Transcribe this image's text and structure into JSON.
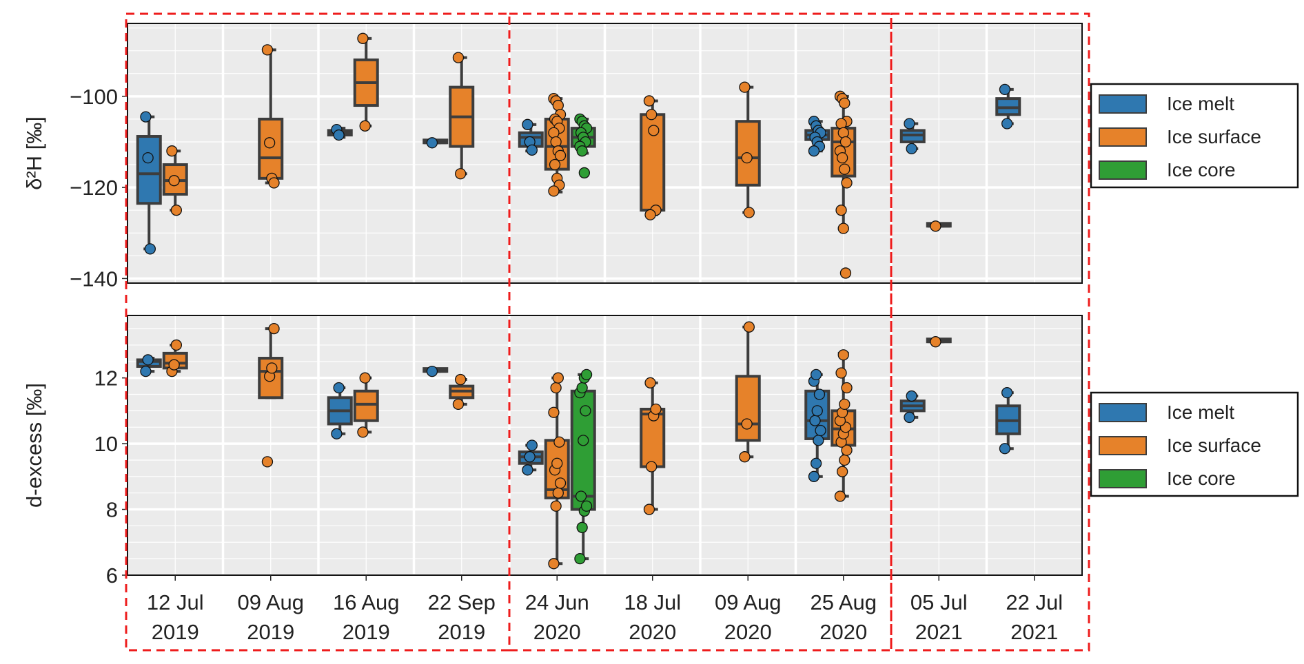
{
  "colors": {
    "Ice melt": "#2f78b0",
    "Ice surface": "#e6822a",
    "Ice core": "#2f9e35",
    "panel_bg": "#ebebeb",
    "grid": "#ffffff",
    "box_edge": "#3d3d3d",
    "group_frame": "#ee1c1c"
  },
  "chart_data": [
    {
      "type": "box",
      "ylabel": "δ²H [‰]",
      "ylim": [
        -141,
        -84
      ],
      "yticks": [
        -100,
        -120,
        -140
      ],
      "grid": true,
      "legend_position": "right",
      "legend": [
        "Ice melt",
        "Ice surface",
        "Ice core"
      ],
      "categories": [
        "12 Jul 2019",
        "09 Aug 2019",
        "16 Aug 2019",
        "22 Sep 2019",
        "24 Jun 2020",
        "18 Jul 2020",
        "09 Aug 2020",
        "25 Aug 2020",
        "05 Jul 2021",
        "22 Jul 2021"
      ],
      "category_lines": [
        [
          "12 Jul",
          "2019"
        ],
        [
          "09 Aug",
          "2019"
        ],
        [
          "16 Aug",
          "2019"
        ],
        [
          "22 Sep",
          "2019"
        ],
        [
          "24 Jun",
          "2020"
        ],
        [
          "18 Jul",
          "2020"
        ],
        [
          "09 Aug",
          "2020"
        ],
        [
          "25 Aug",
          "2020"
        ],
        [
          "05 Jul",
          "2021"
        ],
        [
          "22 Jul",
          "2021"
        ]
      ],
      "series_slots": [
        "Ice melt",
        "Ice surface",
        "Ice core"
      ],
      "boxes": [
        {
          "category": 0,
          "series": "Ice melt",
          "q1": -123.5,
          "median": -117.0,
          "q3": -108.8,
          "whislo": -133.5,
          "whishi": -104.5,
          "points": [
            -104.5,
            -113.5,
            -133.5
          ]
        },
        {
          "category": 0,
          "series": "Ice surface",
          "q1": -121.5,
          "median": -118.5,
          "q3": -115.0,
          "whislo": -125.0,
          "whishi": -112.0,
          "points": [
            -112.0,
            -118.5,
            -125.0
          ]
        },
        {
          "category": 1,
          "series": "Ice surface",
          "q1": -118.0,
          "median": -113.5,
          "q3": -105.0,
          "whislo": -119.0,
          "whishi": -89.8,
          "points": [
            -89.8,
            -110.2,
            -118.0,
            -119.0
          ]
        },
        {
          "category": 2,
          "series": "Ice melt",
          "q1": -108.5,
          "median": -108.0,
          "q3": -107.5,
          "whislo": -109.0,
          "whishi": -107.0,
          "points": [
            -107.3,
            -108.5
          ]
        },
        {
          "category": 2,
          "series": "Ice surface",
          "q1": -102.0,
          "median": -97.0,
          "q3": -92.0,
          "whislo": -106.5,
          "whishi": -87.3,
          "points": [
            -87.3,
            -106.5
          ]
        },
        {
          "category": 3,
          "series": "Ice melt",
          "q1": -110.2,
          "median": -110.2,
          "q3": -110.2,
          "whislo": -110.2,
          "whishi": -110.2,
          "points": [
            -110.2
          ]
        },
        {
          "category": 3,
          "series": "Ice surface",
          "q1": -111.0,
          "median": -104.5,
          "q3": -98.0,
          "whislo": -117.0,
          "whishi": -91.5,
          "points": [
            -91.5,
            -117.0
          ]
        },
        {
          "category": 4,
          "series": "Ice melt",
          "q1": -111.0,
          "median": -109.0,
          "q3": -108.0,
          "whislo": -112.0,
          "whishi": -106.2,
          "points": [
            -106.2,
            -110.0,
            -111.8
          ]
        },
        {
          "category": 4,
          "series": "Ice surface",
          "q1": -116.0,
          "median": -111.0,
          "q3": -105.0,
          "whislo": -121.0,
          "whishi": -100.5,
          "points": [
            -100.5,
            -101.0,
            -102.0,
            -104.0,
            -105.0,
            -105.5,
            -107.0,
            -108.0,
            -110.0,
            -112.0,
            -113.0,
            -115.0,
            -118.0,
            -119.5,
            -120.8
          ]
        },
        {
          "category": 4,
          "series": "Ice core",
          "q1": -111.0,
          "median": -109.0,
          "q3": -107.0,
          "whislo": -112.5,
          "whishi": -105.0,
          "points": [
            -105.0,
            -105.5,
            -106.5,
            -107.0,
            -108.0,
            -109.0,
            -110.0,
            -111.0,
            -112.0,
            -116.8
          ]
        },
        {
          "category": 5,
          "series": "Ice surface",
          "q1": -125.0,
          "median": -125.0,
          "q3": -104.0,
          "whislo": -126.0,
          "whishi": -101.0,
          "points": [
            -101.0,
            -104.0,
            -107.5,
            -125.0,
            -126.0
          ]
        },
        {
          "category": 6,
          "series": "Ice surface",
          "q1": -119.5,
          "median": -113.5,
          "q3": -105.5,
          "whislo": -125.5,
          "whishi": -98.0,
          "points": [
            -98.0,
            -113.5,
            -125.5
          ]
        },
        {
          "category": 7,
          "series": "Ice melt",
          "q1": -109.5,
          "median": -108.5,
          "q3": -107.5,
          "whislo": -112.0,
          "whishi": -105.5,
          "points": [
            -105.5,
            -106.5,
            -107.5,
            -108.0,
            -109.0,
            -110.0,
            -111.0,
            -112.0
          ]
        },
        {
          "category": 7,
          "series": "Ice surface",
          "q1": -117.5,
          "median": -110.0,
          "q3": -107.0,
          "whislo": -129.0,
          "whishi": -100.0,
          "points": [
            -100.0,
            -100.5,
            -101.5,
            -105.5,
            -106.0,
            -108.0,
            -110.0,
            -112.0,
            -113.5,
            -116.0,
            -119.0,
            -125.0,
            -129.0,
            -138.8
          ]
        },
        {
          "category": 8,
          "series": "Ice melt",
          "q1": -110.0,
          "median": -108.5,
          "q3": -107.5,
          "whislo": -111.5,
          "whishi": -106.0,
          "points": [
            -106.0,
            -111.5
          ]
        },
        {
          "category": 8,
          "series": "Ice surface",
          "q1": -128.5,
          "median": -128.5,
          "q3": -128.5,
          "whislo": -128.5,
          "whishi": -128.5,
          "points": [
            -128.5
          ]
        },
        {
          "category": 9,
          "series": "Ice melt",
          "q1": -104.0,
          "median": -102.5,
          "q3": -100.5,
          "whislo": -106.0,
          "whishi": -98.5,
          "points": [
            -98.5,
            -106.0
          ]
        }
      ]
    },
    {
      "type": "box",
      "ylabel": "d-excess [‰]",
      "ylim": [
        6,
        13.9
      ],
      "yticks": [
        12,
        10,
        8,
        6
      ],
      "grid": true,
      "legend_position": "right",
      "legend": [
        "Ice melt",
        "Ice surface",
        "Ice core"
      ],
      "categories": [
        "12 Jul 2019",
        "09 Aug 2019",
        "16 Aug 2019",
        "22 Sep 2019",
        "24 Jun 2020",
        "18 Jul 2020",
        "09 Aug 2020",
        "25 Aug 2020",
        "05 Jul 2021",
        "22 Jul 2021"
      ],
      "series_slots": [
        "Ice melt",
        "Ice surface",
        "Ice core"
      ],
      "boxes": [
        {
          "category": 0,
          "series": "Ice melt",
          "q1": 12.35,
          "median": 12.5,
          "q3": 12.55,
          "whislo": 12.2,
          "whishi": 12.6,
          "points": [
            12.2,
            12.55
          ]
        },
        {
          "category": 0,
          "series": "Ice surface",
          "q1": 12.3,
          "median": 12.45,
          "q3": 12.75,
          "whislo": 12.2,
          "whishi": 13.0,
          "points": [
            12.2,
            12.4,
            13.0
          ]
        },
        {
          "category": 1,
          "series": "Ice surface",
          "q1": 11.4,
          "median": 12.2,
          "q3": 12.6,
          "whislo": 11.4,
          "whishi": 13.5,
          "points": [
            9.45,
            12.05,
            12.3,
            13.5
          ]
        },
        {
          "category": 2,
          "series": "Ice melt",
          "q1": 10.6,
          "median": 11.0,
          "q3": 11.4,
          "whislo": 10.3,
          "whishi": 11.7,
          "points": [
            10.3,
            11.7
          ]
        },
        {
          "category": 2,
          "series": "Ice surface",
          "q1": 10.7,
          "median": 11.2,
          "q3": 11.6,
          "whislo": 10.35,
          "whishi": 12.0,
          "points": [
            10.35,
            12.0
          ]
        },
        {
          "category": 3,
          "series": "Ice melt",
          "q1": 12.2,
          "median": 12.2,
          "q3": 12.2,
          "whislo": 12.2,
          "whishi": 12.2,
          "points": [
            12.2
          ]
        },
        {
          "category": 3,
          "series": "Ice surface",
          "q1": 11.4,
          "median": 11.6,
          "q3": 11.75,
          "whislo": 11.2,
          "whishi": 11.95,
          "points": [
            11.2,
            11.95
          ]
        },
        {
          "category": 4,
          "series": "Ice melt",
          "q1": 9.4,
          "median": 9.6,
          "q3": 9.75,
          "whislo": 9.2,
          "whishi": 9.95,
          "points": [
            9.2,
            9.6,
            9.95
          ]
        },
        {
          "category": 4,
          "series": "Ice surface",
          "q1": 8.35,
          "median": 8.6,
          "q3": 10.1,
          "whislo": 6.35,
          "whishi": 12.0,
          "points": [
            6.35,
            8.1,
            8.5,
            8.8,
            9.2,
            9.4,
            10.05,
            10.95,
            11.7,
            12.0
          ]
        },
        {
          "category": 4,
          "series": "Ice core",
          "q1": 8.0,
          "median": 8.4,
          "q3": 11.6,
          "whislo": 6.5,
          "whishi": 12.1,
          "points": [
            6.5,
            7.45,
            7.95,
            8.1,
            8.4,
            10.1,
            11.0,
            11.55,
            11.7,
            12.0,
            12.1
          ]
        },
        {
          "category": 5,
          "series": "Ice surface",
          "q1": 9.3,
          "median": 10.9,
          "q3": 11.05,
          "whislo": 8.0,
          "whishi": 11.85,
          "points": [
            8.0,
            9.3,
            10.85,
            11.05,
            11.85
          ]
        },
        {
          "category": 6,
          "series": "Ice surface",
          "q1": 10.1,
          "median": 10.6,
          "q3": 12.05,
          "whislo": 9.6,
          "whishi": 13.55,
          "points": [
            9.6,
            10.6,
            13.55
          ]
        },
        {
          "category": 7,
          "series": "Ice melt",
          "q1": 10.15,
          "median": 10.7,
          "q3": 11.6,
          "whislo": 9.0,
          "whishi": 12.1,
          "points": [
            9.0,
            9.4,
            10.1,
            10.4,
            10.7,
            11.0,
            11.5,
            11.9,
            12.1
          ]
        },
        {
          "category": 7,
          "series": "Ice surface",
          "q1": 9.95,
          "median": 10.45,
          "q3": 11.0,
          "whislo": 8.4,
          "whishi": 12.75,
          "points": [
            8.4,
            9.15,
            9.5,
            9.8,
            10.05,
            10.3,
            10.5,
            10.7,
            10.95,
            11.2,
            11.7,
            12.15,
            12.7
          ]
        },
        {
          "category": 8,
          "series": "Ice melt",
          "q1": 11.0,
          "median": 11.15,
          "q3": 11.3,
          "whislo": 10.8,
          "whishi": 11.45,
          "points": [
            10.8,
            11.45
          ]
        },
        {
          "category": 8,
          "series": "Ice surface",
          "q1": 13.1,
          "median": 13.1,
          "q3": 13.1,
          "whislo": 13.1,
          "whishi": 13.1,
          "points": [
            13.1
          ]
        },
        {
          "category": 9,
          "series": "Ice melt",
          "q1": 10.3,
          "median": 10.7,
          "q3": 11.15,
          "whislo": 9.85,
          "whishi": 11.55,
          "points": [
            9.85,
            11.55
          ]
        }
      ]
    }
  ]
}
